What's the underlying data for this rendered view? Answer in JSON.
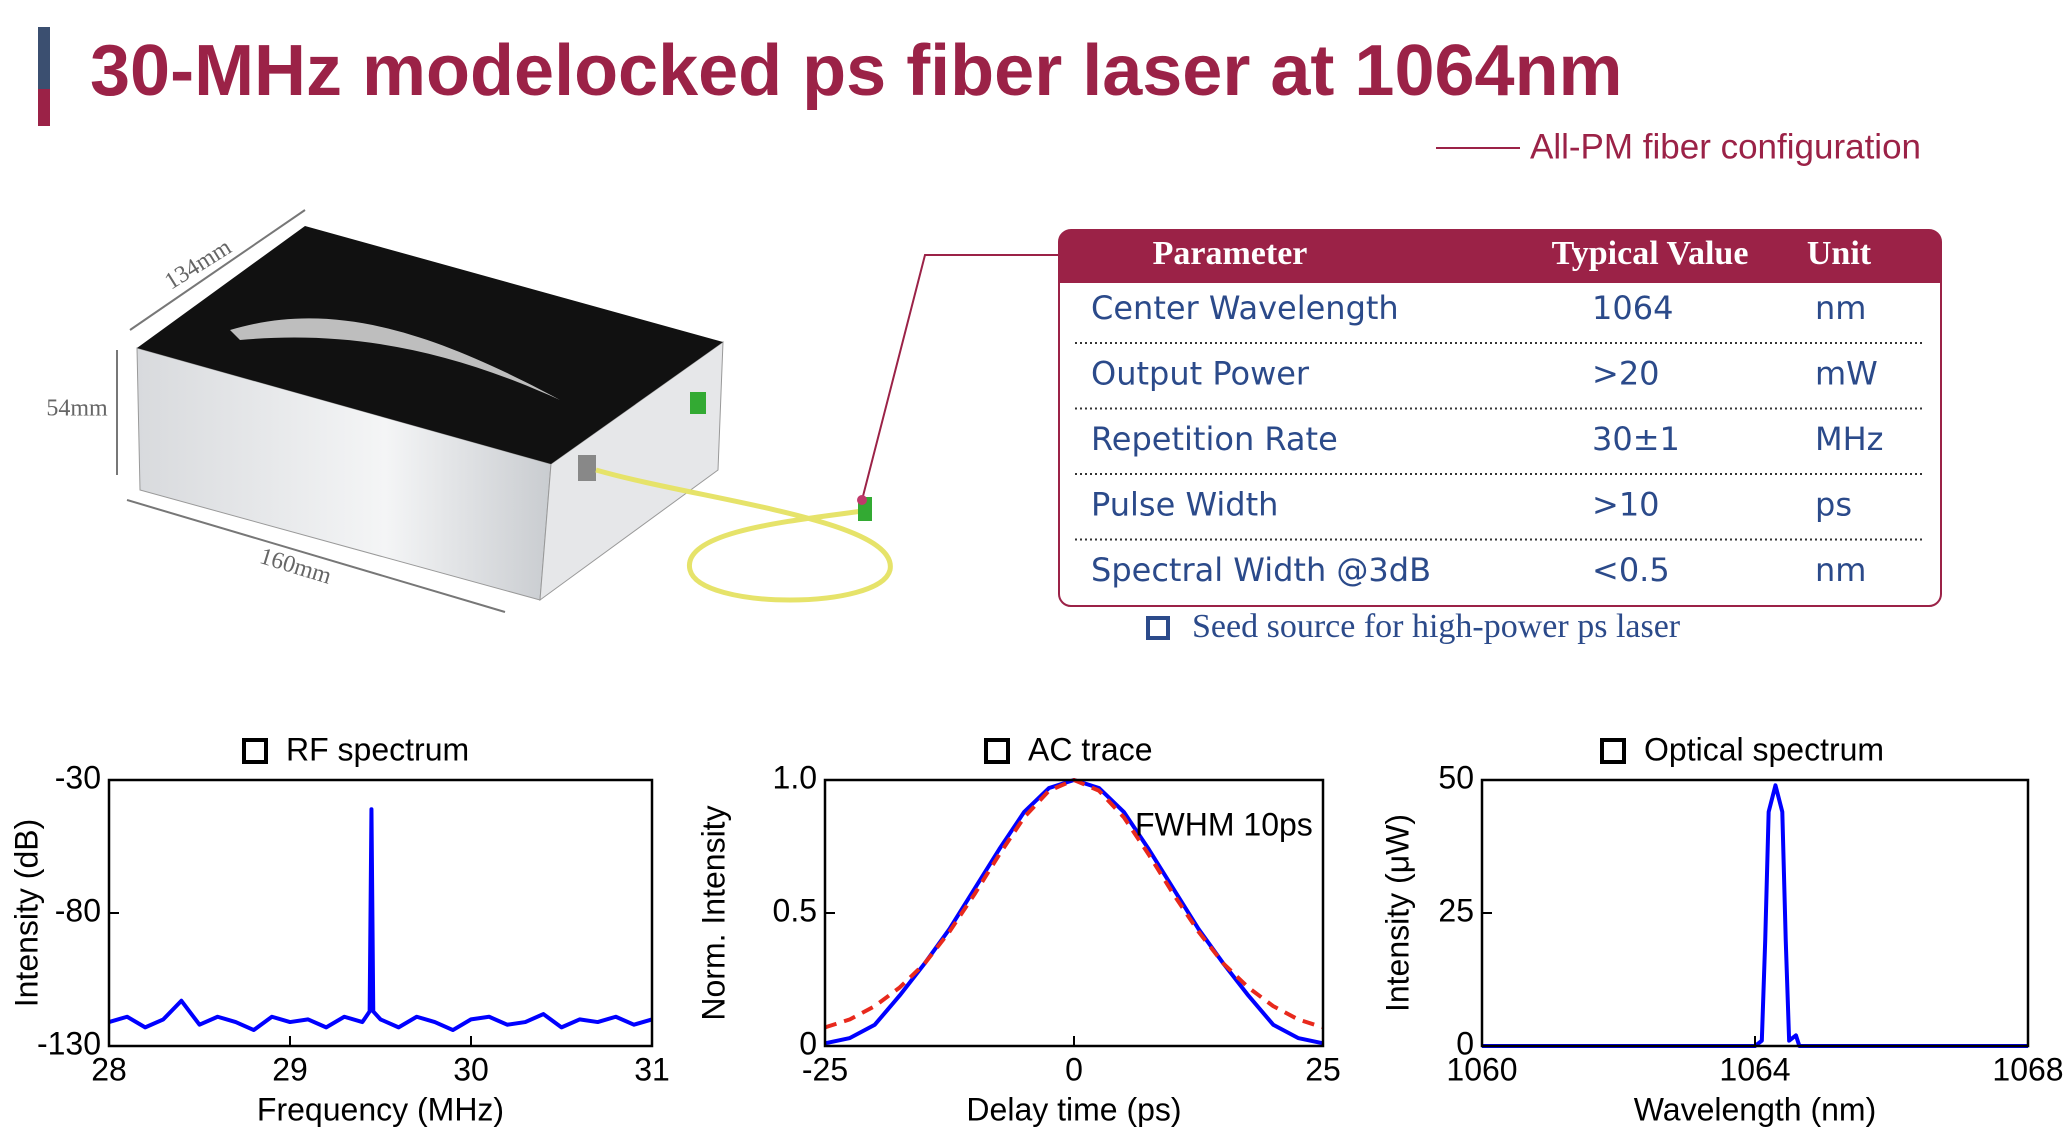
{
  "header": {
    "title": "30-MHz modelocked ps fiber laser at 1064nm",
    "subtitle": "All-PM fiber configuration"
  },
  "product": {
    "dimensions": [
      "134mm",
      "54mm",
      "160mm"
    ]
  },
  "table": {
    "columns": [
      "Parameter",
      "Typical Value",
      "Unit"
    ],
    "rows": [
      [
        "Center Wavelength",
        "1064",
        "nm"
      ],
      [
        "Output Power",
        ">20",
        "mW"
      ],
      [
        "Repetition Rate",
        "30±1",
        "MHz"
      ],
      [
        "Pulse Width",
        ">10",
        "ps"
      ],
      [
        "Spectral Width @3dB",
        "<0.5",
        "nm"
      ]
    ]
  },
  "note": "Seed source for high-power ps laser",
  "chart_data": [
    {
      "type": "line",
      "title": "RF spectrum",
      "x_label": "Frequency (MHz)",
      "y_label": "Intensity (dB)",
      "xlim": [
        28,
        31
      ],
      "ylim": [
        -130,
        -30
      ],
      "xticks": [
        28,
        29,
        30,
        31
      ],
      "yticks": [
        -130,
        -80,
        -30
      ],
      "x": [
        28.0,
        28.1,
        28.2,
        28.3,
        28.4,
        28.5,
        28.6,
        28.7,
        28.8,
        28.9,
        29.0,
        29.1,
        29.2,
        29.3,
        29.4,
        29.44,
        29.45,
        29.46,
        29.5,
        29.6,
        29.7,
        29.8,
        29.9,
        30.0,
        30.1,
        30.2,
        30.3,
        30.4,
        30.5,
        30.6,
        30.7,
        30.8,
        30.9,
        31.0
      ],
      "series": [
        {
          "color": "#0000ff",
          "values": [
            -121,
            -119,
            -123,
            -120,
            -113,
            -122,
            -119,
            -121,
            -124,
            -119,
            -121,
            -120,
            -123,
            -119,
            -121,
            -117,
            -41,
            -117,
            -120,
            -123,
            -119,
            -121,
            -124,
            -120,
            -119,
            -122,
            -121,
            -118,
            -123,
            -120,
            -121,
            -119,
            -122,
            -120
          ]
        }
      ]
    },
    {
      "type": "line",
      "title": "AC trace",
      "x_label": "Delay time (ps)",
      "y_label": "Norm. Intensity",
      "annotation": "FWHM 10ps",
      "xlim": [
        -25,
        25
      ],
      "ylim": [
        0,
        1
      ],
      "xticks": [
        -25,
        0,
        25
      ],
      "yticks": [
        0,
        0.5,
        {
          "value": 1,
          "label": "1.0"
        }
      ],
      "x": [
        -25,
        -22.5,
        -20,
        -17.5,
        -15,
        -12.5,
        -10,
        -7.5,
        -5,
        -2.5,
        0,
        2.5,
        5,
        7.5,
        10,
        12.5,
        15,
        17.5,
        20,
        22.5,
        25
      ],
      "series": [
        {
          "color": "#0000ff",
          "line_style": "solid",
          "values": [
            0.01,
            0.03,
            0.08,
            0.19,
            0.31,
            0.44,
            0.59,
            0.74,
            0.88,
            0.97,
            1,
            0.97,
            0.88,
            0.74,
            0.59,
            0.44,
            0.31,
            0.19,
            0.08,
            0.03,
            0.01
          ]
        },
        {
          "color": "#e8291c",
          "line_style": "dashed",
          "values": [
            0.07,
            0.1,
            0.15,
            0.22,
            0.31,
            0.43,
            0.57,
            0.72,
            0.86,
            0.96,
            1,
            0.96,
            0.86,
            0.72,
            0.57,
            0.43,
            0.31,
            0.22,
            0.15,
            0.1,
            0.07
          ]
        }
      ]
    },
    {
      "type": "line",
      "title": "Optical spectrum",
      "x_label": "Wavelength (nm)",
      "y_label": "Intensity (μW)",
      "xlim": [
        1060,
        1068
      ],
      "ylim": [
        0,
        50
      ],
      "xticks": [
        1060,
        1064,
        1068
      ],
      "yticks": [
        0,
        25,
        50
      ],
      "x": [
        1060,
        1064.0,
        1064.1,
        1064.15,
        1064.2,
        1064.3,
        1064.4,
        1064.45,
        1064.5,
        1064.6,
        1064.65,
        1068
      ],
      "series": [
        {
          "color": "#0000ff",
          "values": [
            0,
            0,
            1,
            20,
            44,
            49,
            44,
            20,
            1,
            2,
            0,
            0
          ]
        }
      ]
    }
  ]
}
